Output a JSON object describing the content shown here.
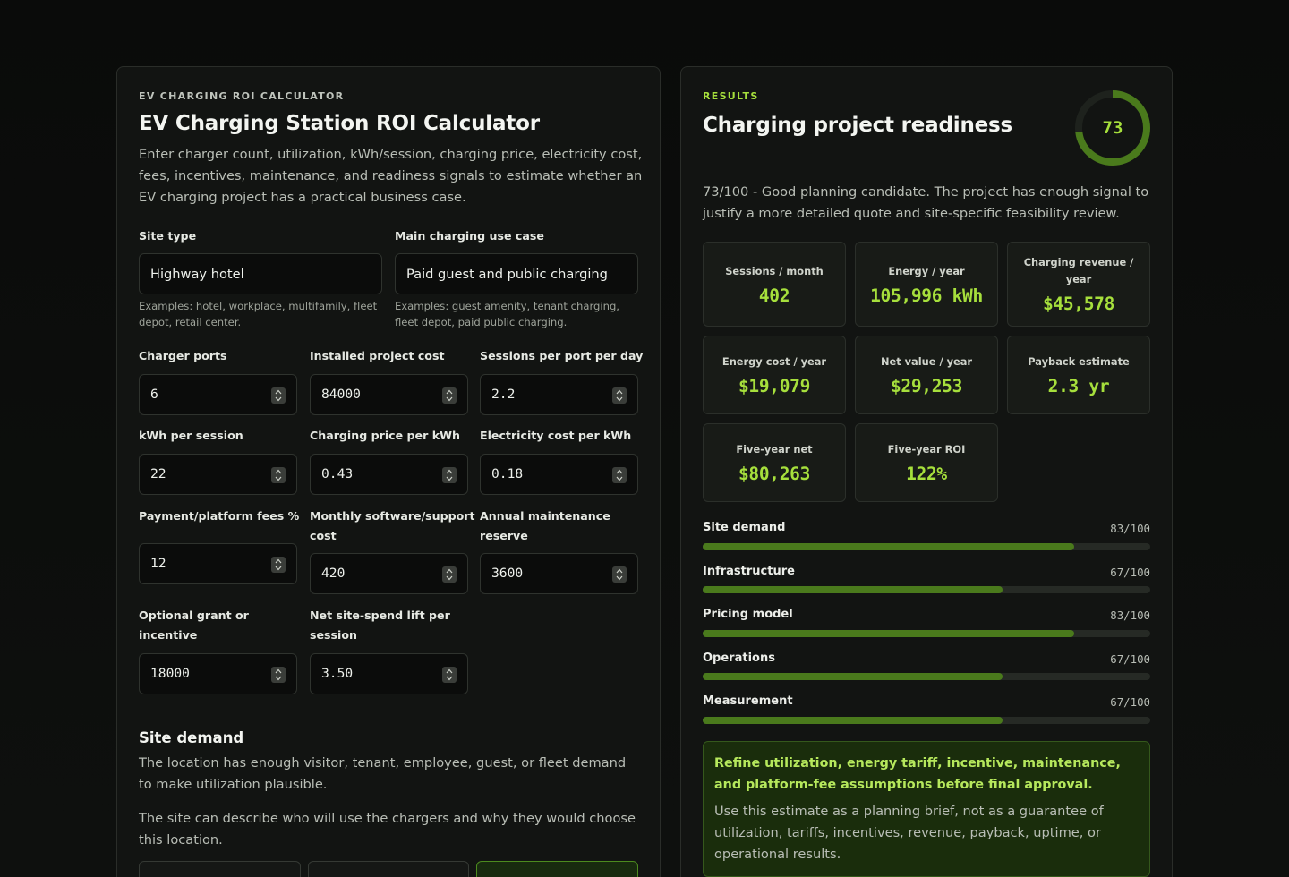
{
  "calculator": {
    "eyebrow": "EV CHARGING ROI CALCULATOR",
    "title": "EV Charging Station ROI Calculator",
    "description": "Enter charger count, utilization, kWh/session, charging price, electricity cost, fees, incentives, maintenance, and readiness signals to estimate whether an EV charging project has a practical business case.",
    "site_type": {
      "label": "Site type",
      "value": "Highway hotel",
      "help": "Examples: hotel, workplace, multifamily, fleet depot, retail center."
    },
    "use_case": {
      "label": "Main charging use case",
      "value": "Paid guest and public charging",
      "help": "Examples: guest amenity, tenant charging, fleet depot, paid public charging."
    },
    "fields": [
      {
        "label": "Charger ports",
        "value": "6"
      },
      {
        "label": "Installed project cost",
        "value": "84000"
      },
      {
        "label": "Sessions per port per day",
        "value": "2.2"
      },
      {
        "label": "kWh per session",
        "value": "22"
      },
      {
        "label": "Charging price per kWh",
        "value": "0.43"
      },
      {
        "label": "Electricity cost per kWh",
        "value": "0.18"
      },
      {
        "label": "Payment/platform fees %",
        "value": "12"
      },
      {
        "label": "Monthly software/support cost",
        "value": "420"
      },
      {
        "label": "Annual maintenance reserve",
        "value": "3600"
      },
      {
        "label": "Optional grant or incentive",
        "value": "18000"
      },
      {
        "label": "Net site-spend lift per session",
        "value": "3.50"
      }
    ],
    "section": {
      "title": "Site demand",
      "description": "The location has enough visitor, tenant, employee, guest, or fleet demand to make utilization plausible.",
      "prompt": "The site can describe who will use the chargers and why they would choose this location."
    },
    "option_selected_index": 2
  },
  "results": {
    "eyebrow": "RESULTS",
    "title": "Charging project readiness",
    "score": "73",
    "score_fraction": 0.73,
    "summary": "73/100 - Good planning candidate. The project has enough signal to justify a more detailed quote and site-specific feasibility review.",
    "metrics": [
      {
        "label": "Sessions / month",
        "value": "402"
      },
      {
        "label": "Energy / year",
        "value": "105,996 kWh"
      },
      {
        "label": "Charging revenue / year",
        "value": "$45,578"
      },
      {
        "label": "Energy cost / year",
        "value": "$19,079"
      },
      {
        "label": "Net value / year",
        "value": "$29,253"
      },
      {
        "label": "Payback estimate",
        "value": "2.3 yr"
      },
      {
        "label": "Five-year net",
        "value": "$80,263"
      },
      {
        "label": "Five-year ROI",
        "value": "122%"
      }
    ],
    "scores": [
      {
        "label": "Site demand",
        "score": "83/100",
        "fraction": 0.83
      },
      {
        "label": "Infrastructure",
        "score": "67/100",
        "fraction": 0.67
      },
      {
        "label": "Pricing model",
        "score": "83/100",
        "fraction": 0.83
      },
      {
        "label": "Operations",
        "score": "67/100",
        "fraction": 0.67
      },
      {
        "label": "Measurement",
        "score": "67/100",
        "fraction": 0.67
      }
    ],
    "advice_title": "Refine utilization, energy tariff, incentive, maintenance, and platform-fee assumptions before final approval.",
    "advice_body": "Use this estimate as a planning brief, not as a guarantee of utilization, tariffs, incentives, revenue, payback, uptime, or operational results."
  },
  "colors": {
    "accent": "#a6df3c",
    "bar_fill": "#4a7a1c",
    "ring_track": "#1e221d",
    "ring_fill": "#4a7a1c"
  },
  "icons": {
    "stepper": "up-down-chevron-icon",
    "score_ring": "progress-ring"
  }
}
